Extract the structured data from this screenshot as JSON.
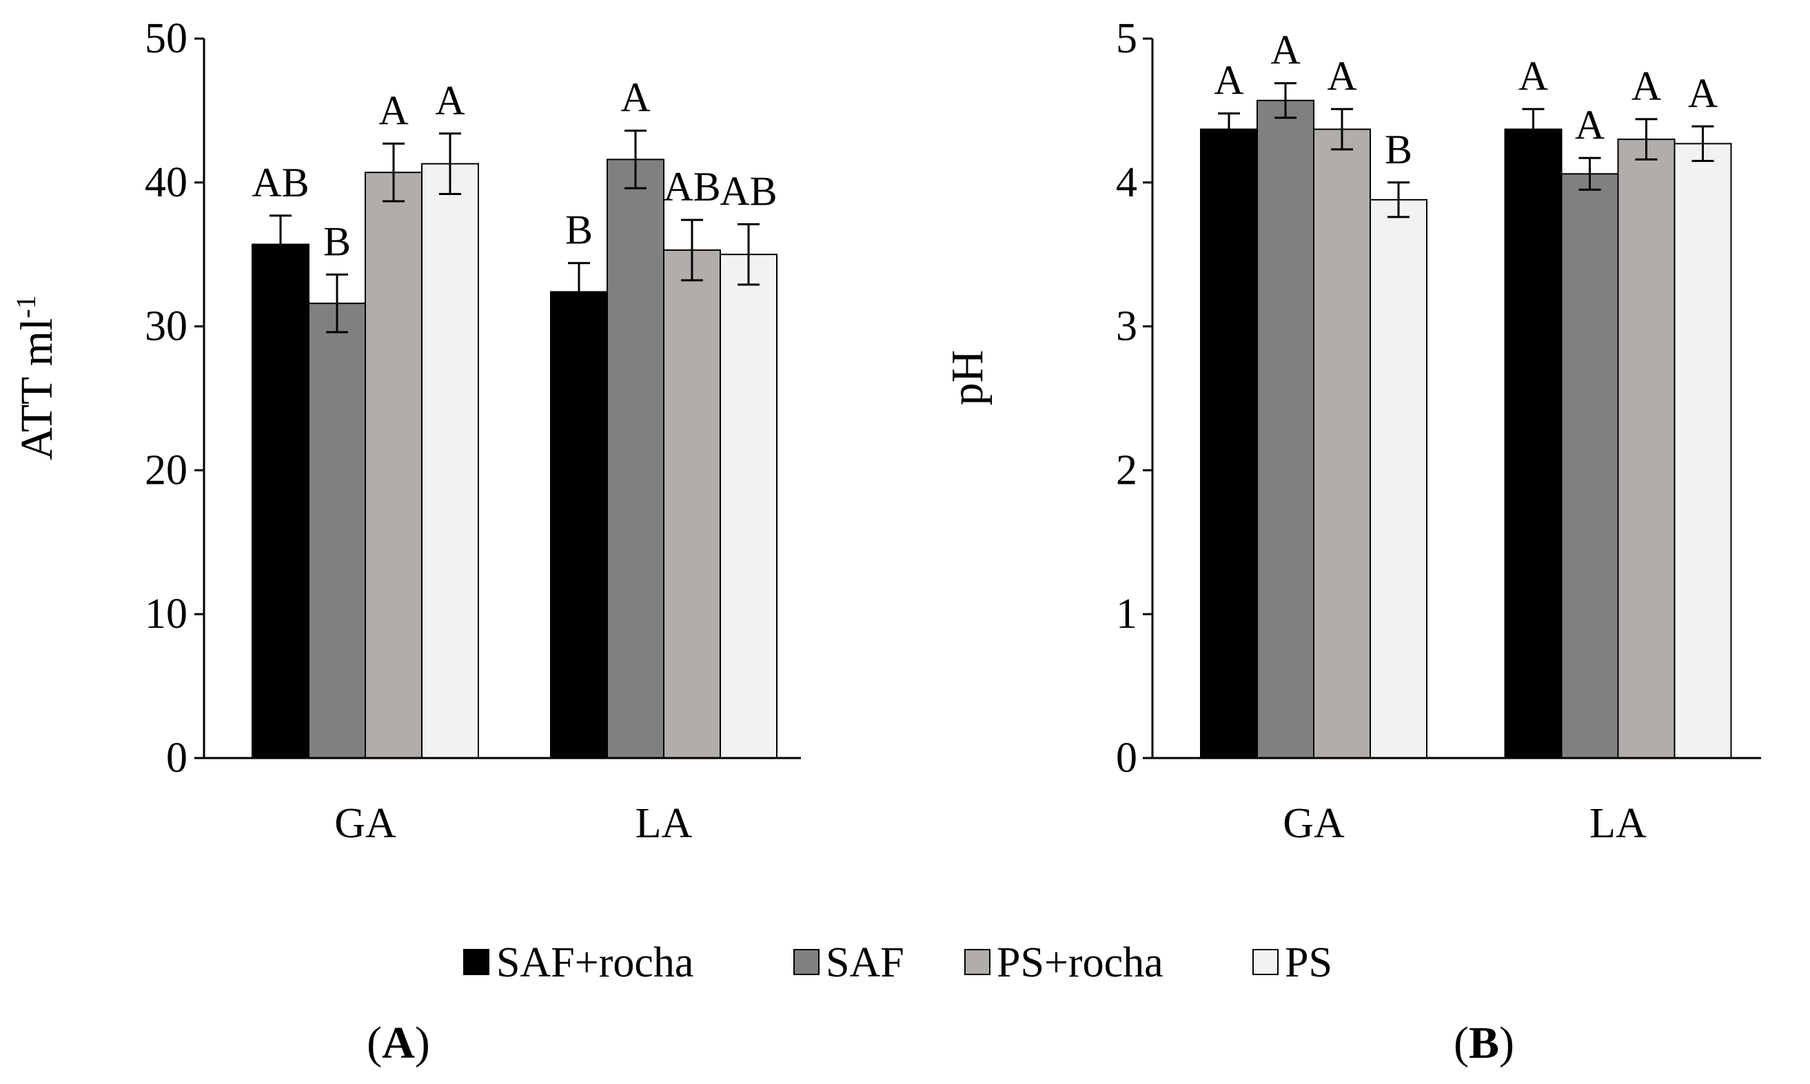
{
  "chart_data": [
    {
      "type": "bar",
      "panel_label": "A",
      "ylabel": "ATT ml",
      "ylabel_sup": "-1",
      "ylim": [
        0,
        50
      ],
      "yticks": [
        "0",
        "10",
        "20",
        "30",
        "40",
        "50"
      ],
      "categories": [
        "GA",
        "LA"
      ],
      "series": [
        {
          "name": "SAF+rocha",
          "values": [
            35.7,
            32.4
          ],
          "errors": [
            2.0,
            2.0
          ],
          "letters": [
            "AB",
            "B"
          ]
        },
        {
          "name": "SAF",
          "values": [
            31.6,
            41.6
          ],
          "errors": [
            2.0,
            2.0
          ],
          "letters": [
            "B",
            "A"
          ]
        },
        {
          "name": "PS+rocha",
          "values": [
            40.7,
            35.3
          ],
          "errors": [
            2.0,
            2.1
          ],
          "letters": [
            "A",
            "AB"
          ]
        },
        {
          "name": "PS",
          "values": [
            41.3,
            35.0
          ],
          "errors": [
            2.1,
            2.1
          ],
          "letters": [
            "A",
            "AB"
          ]
        }
      ]
    },
    {
      "type": "bar",
      "panel_label": "B",
      "ylabel": "pH",
      "ylim": [
        0,
        5
      ],
      "yticks": [
        "0",
        "1",
        "2",
        "3",
        "4",
        "5"
      ],
      "categories": [
        "GA",
        "LA"
      ],
      "series": [
        {
          "name": "SAF+rocha",
          "values": [
            4.37,
            4.37
          ],
          "errors": [
            0.11,
            0.14
          ],
          "letters": [
            "A",
            "A"
          ]
        },
        {
          "name": "SAF",
          "values": [
            4.57,
            4.06
          ],
          "errors": [
            0.12,
            0.11
          ],
          "letters": [
            "A",
            "A"
          ]
        },
        {
          "name": "PS+rocha",
          "values": [
            4.37,
            4.3
          ],
          "errors": [
            0.14,
            0.14
          ],
          "letters": [
            "A",
            "A"
          ]
        },
        {
          "name": "PS",
          "values": [
            3.88,
            4.27
          ],
          "errors": [
            0.12,
            0.12
          ],
          "letters": [
            "B",
            "A"
          ]
        }
      ]
    }
  ],
  "legend": {
    "items": [
      {
        "label": "SAF+rocha",
        "color": "#000000"
      },
      {
        "label": "SAF",
        "color": "#808080"
      },
      {
        "label": "PS+rocha",
        "color": "#b1adab"
      },
      {
        "label": "PS",
        "color": "#f2f2f2"
      }
    ]
  },
  "colors": [
    "#000000",
    "#808080",
    "#b1adab",
    "#f2f2f2"
  ]
}
